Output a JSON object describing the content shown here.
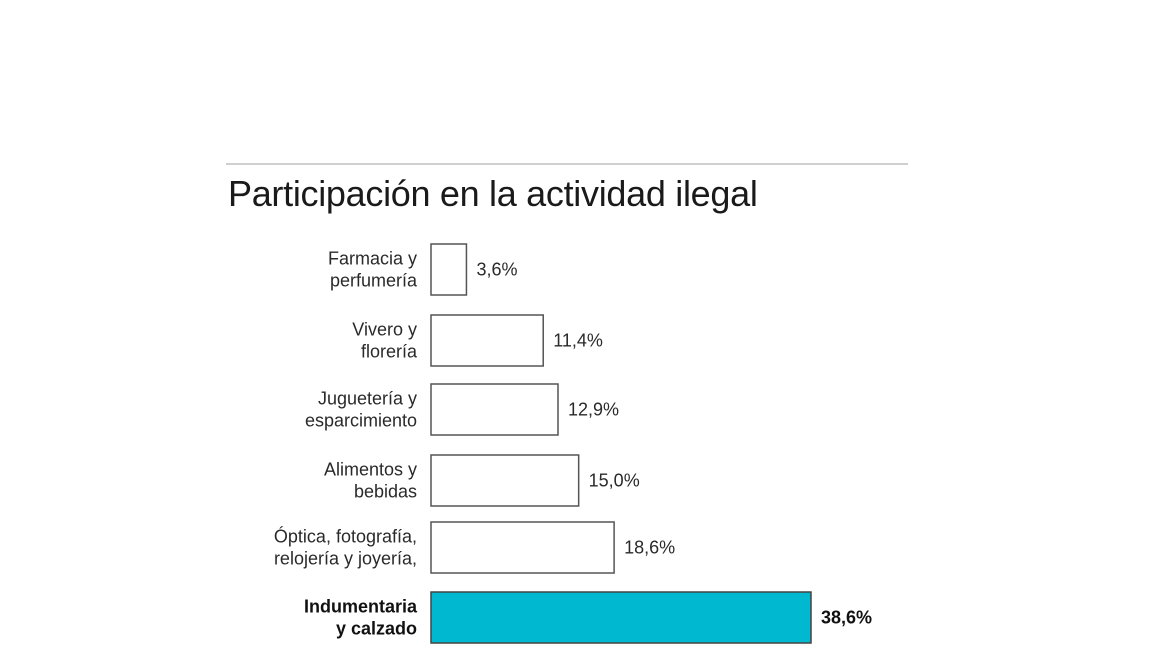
{
  "chart_data": {
    "type": "bar",
    "orientation": "horizontal",
    "title": "Participación en la actividad ilegal",
    "categories": [
      [
        "Farmacia y",
        "perfumería"
      ],
      [
        "Vivero y",
        "florería"
      ],
      [
        "Juguetería y",
        "esparcimiento"
      ],
      [
        "Alimentos y",
        "bebidas"
      ],
      [
        "Óptica, fotografía,",
        "relojería y joyería,"
      ],
      [
        "Indumentaria",
        "y calzado"
      ]
    ],
    "values": [
      3.6,
      11.4,
      12.9,
      15.0,
      18.6,
      38.6
    ],
    "value_labels": [
      "3,6%",
      "11,4%",
      "12,9%",
      "15,0%",
      "18,6%",
      "38,6%"
    ],
    "highlight_index": 5,
    "colors": {
      "bar_fill": "#ffffff",
      "bar_stroke": "#555555",
      "highlight_fill": "#00b8d0",
      "highlight_stroke": "#444444",
      "rule": "#cfcfcf"
    },
    "xlim": [
      0,
      38.6
    ],
    "grid": false
  }
}
